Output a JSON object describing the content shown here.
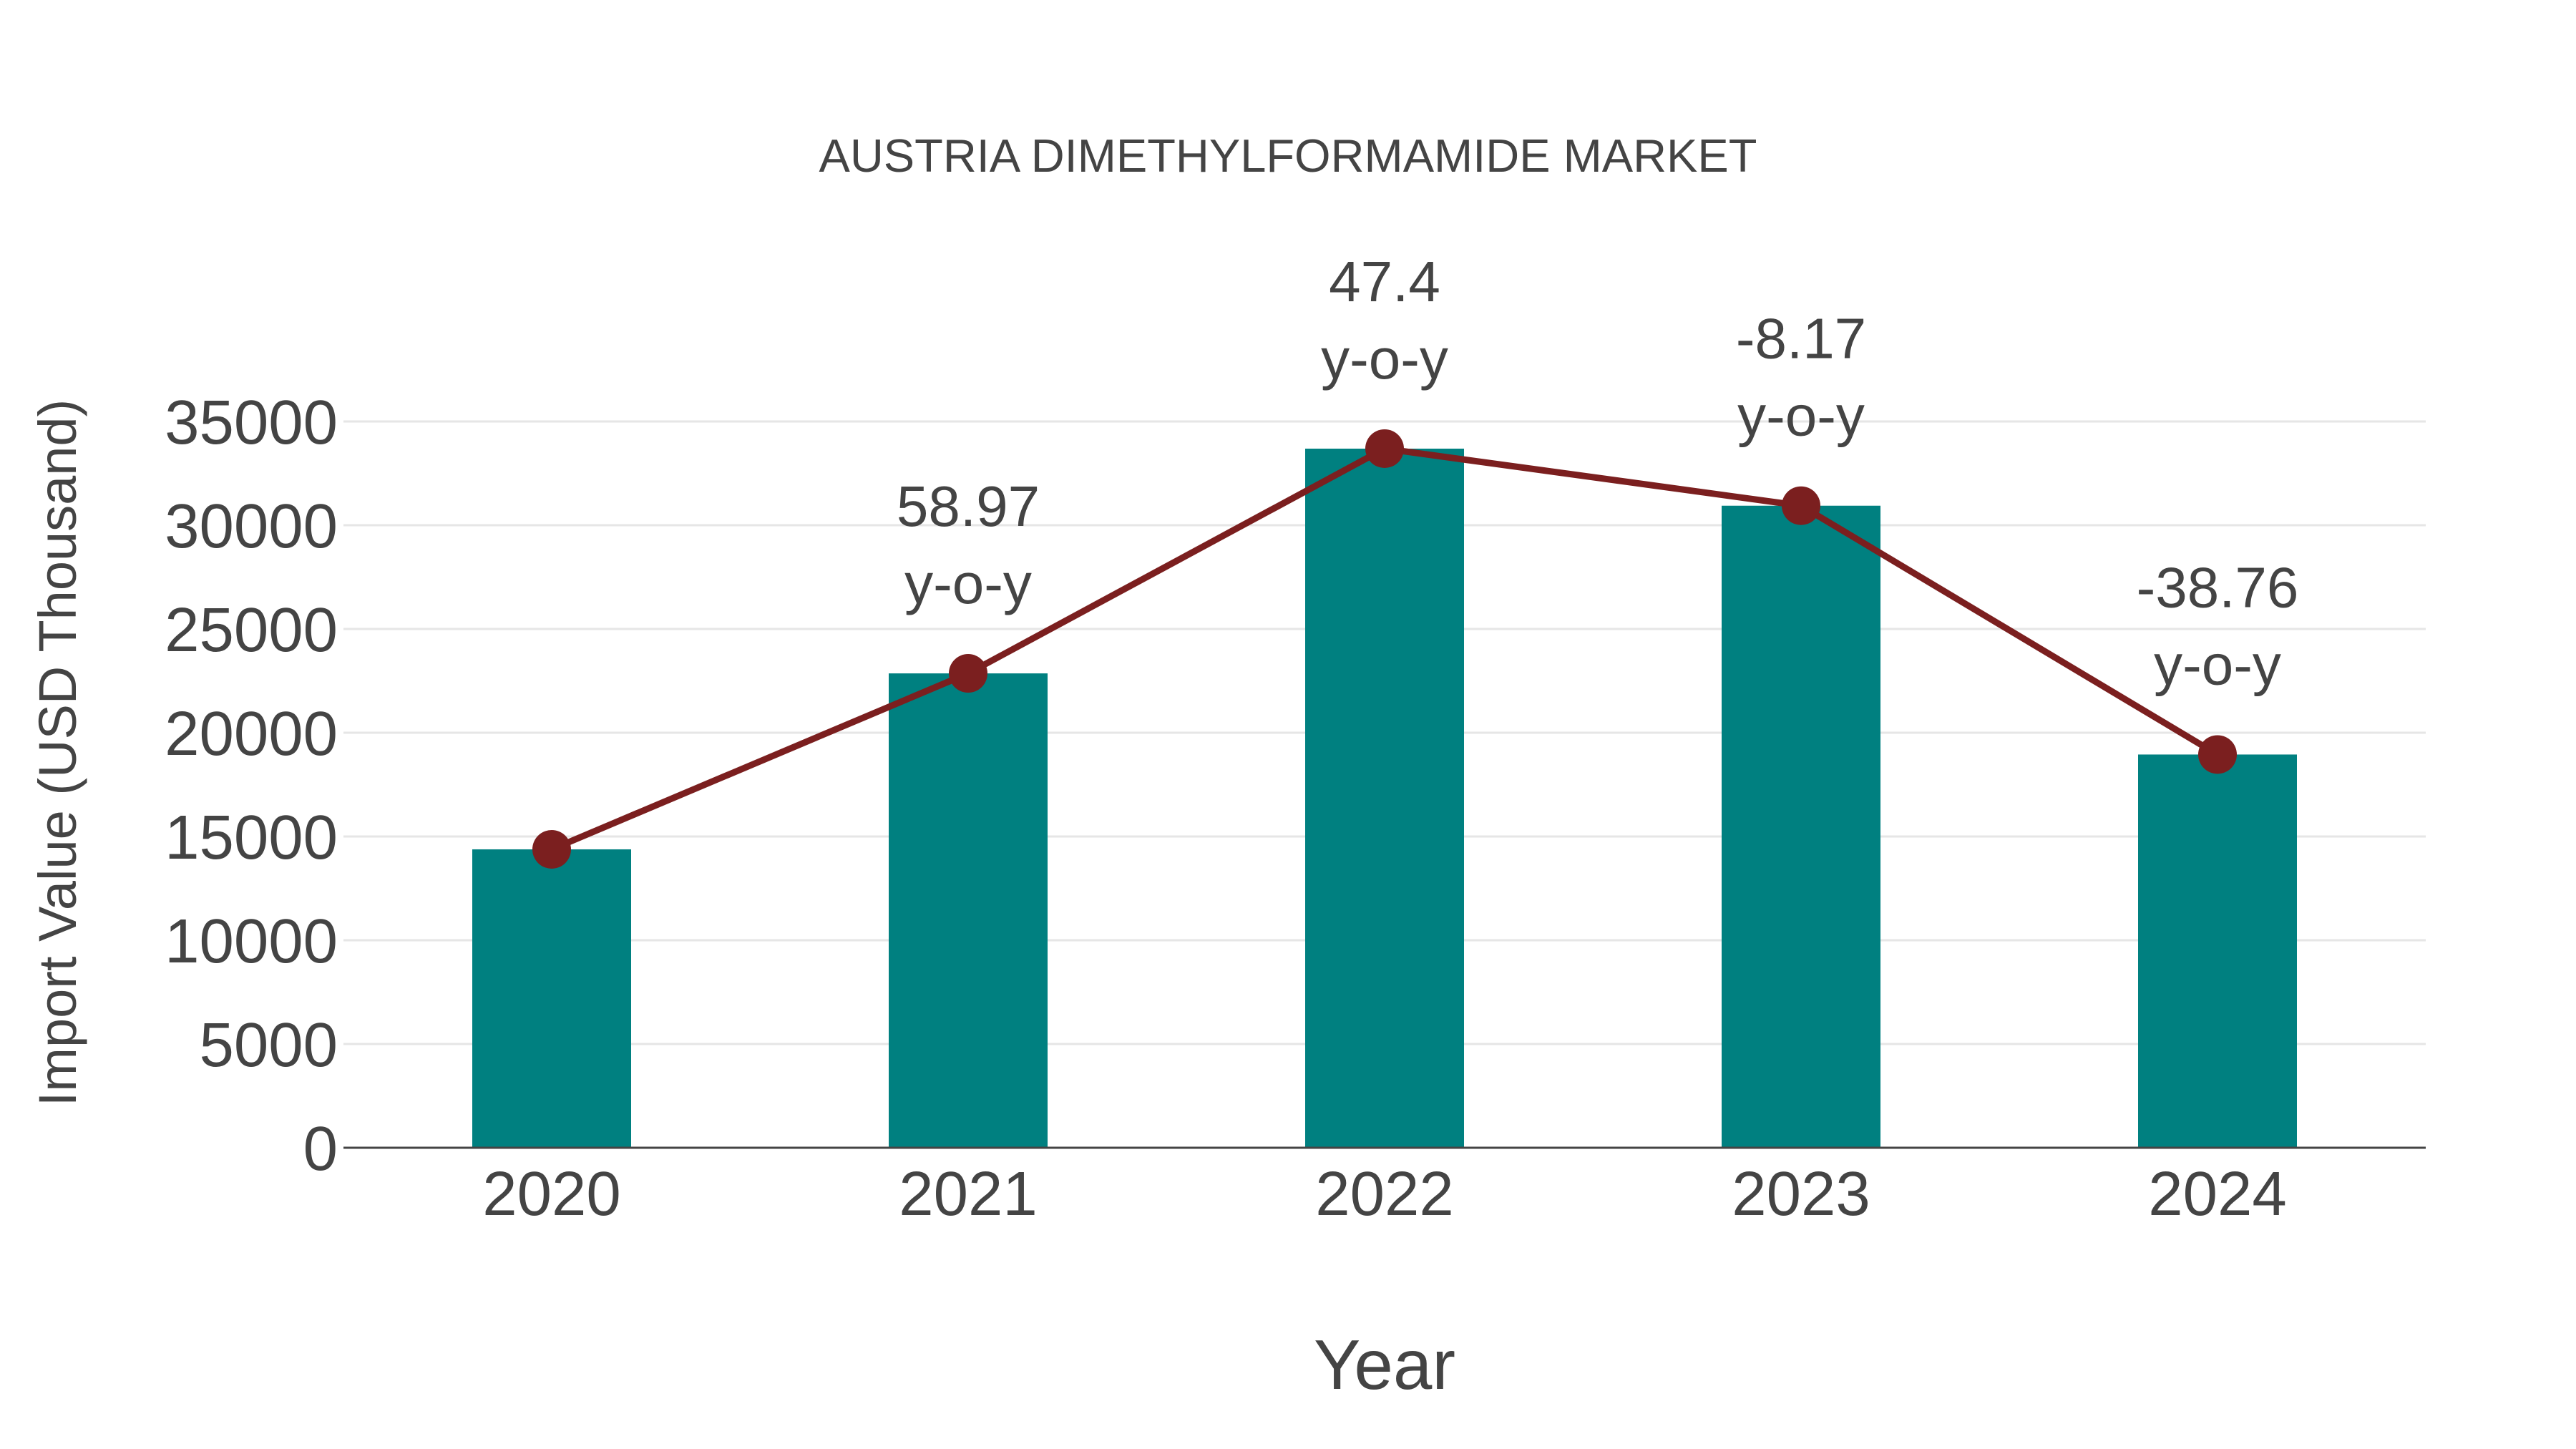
{
  "chart_data": {
    "type": "bar",
    "title": "AUSTRIA DIMETHYLFORMAMIDE MARKET",
    "xlabel": "Year",
    "ylabel": "Import Value (USD Thousand)",
    "categories": [
      "2020",
      "2021",
      "2022",
      "2023",
      "2024"
    ],
    "series": [
      {
        "name": "Import Value",
        "type": "bar",
        "color": "#008080",
        "values": [
          14380,
          22860,
          33690,
          30940,
          18950
        ]
      },
      {
        "name": "Import Value (trend)",
        "type": "line",
        "color": "#7b1f1f",
        "marker": "circle",
        "values": [
          14380,
          22860,
          33690,
          30940,
          18950
        ]
      }
    ],
    "annotations": [
      {
        "category": "2021",
        "value": "58.97",
        "unit": "y-o-y"
      },
      {
        "category": "2022",
        "value": "47.4",
        "unit": "y-o-y"
      },
      {
        "category": "2023",
        "value": "-8.17",
        "unit": "y-o-y"
      },
      {
        "category": "2024",
        "value": "-38.76",
        "unit": "y-o-y"
      }
    ],
    "ylim": [
      0,
      35000
    ],
    "yticks": [
      0,
      5000,
      10000,
      15000,
      20000,
      25000,
      30000,
      35000
    ],
    "grid": true,
    "legend": "none"
  },
  "colors": {
    "bar": "#008080",
    "line": "#7b1f1f",
    "text": "#444444",
    "grid": "#e6e6e6",
    "axis": "#444444"
  }
}
